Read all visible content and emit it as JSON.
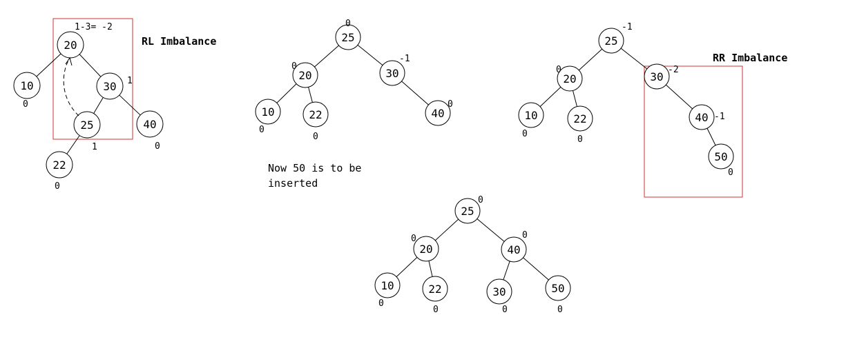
{
  "colors": {
    "box": "#d03030",
    "ink": "#000000"
  },
  "labels": {
    "rl_imbalance": "RL Imbalance",
    "rr_imbalance": "RR Imbalance",
    "rl_calc": "1-3= -2",
    "note_line1": "Now 50 is to be",
    "note_line2": "inserted"
  },
  "trees": [
    {
      "id": "t1",
      "nodes": [
        {
          "id": "n20",
          "label": "20",
          "bf": ""
        },
        {
          "id": "n10",
          "label": "10",
          "bf": "0"
        },
        {
          "id": "n30",
          "label": "30",
          "bf": "1"
        },
        {
          "id": "n25",
          "label": "25",
          "bf": "1"
        },
        {
          "id": "n40",
          "label": "40",
          "bf": "0"
        },
        {
          "id": "n22",
          "label": "22",
          "bf": "0"
        }
      ]
    },
    {
      "id": "t2",
      "nodes": [
        {
          "id": "n25",
          "label": "25",
          "bf": "0"
        },
        {
          "id": "n20",
          "label": "20",
          "bf": "0"
        },
        {
          "id": "n30",
          "label": "30",
          "bf": "-1"
        },
        {
          "id": "n10",
          "label": "10",
          "bf": "0"
        },
        {
          "id": "n22",
          "label": "22",
          "bf": "0"
        },
        {
          "id": "n40",
          "label": "40",
          "bf": "0"
        }
      ]
    },
    {
      "id": "t3",
      "nodes": [
        {
          "id": "n25",
          "label": "25",
          "bf": "-1"
        },
        {
          "id": "n20",
          "label": "20",
          "bf": "0"
        },
        {
          "id": "n30",
          "label": "30",
          "bf": "-2"
        },
        {
          "id": "n10",
          "label": "10",
          "bf": "0"
        },
        {
          "id": "n22",
          "label": "22",
          "bf": "0"
        },
        {
          "id": "n40",
          "label": "40",
          "bf": "-1"
        },
        {
          "id": "n50",
          "label": "50",
          "bf": "0"
        }
      ]
    },
    {
      "id": "t4",
      "nodes": [
        {
          "id": "n25",
          "label": "25",
          "bf": "0"
        },
        {
          "id": "n20",
          "label": "20",
          "bf": "0"
        },
        {
          "id": "n40",
          "label": "40",
          "bf": "0"
        },
        {
          "id": "n10",
          "label": "10",
          "bf": "0"
        },
        {
          "id": "n22",
          "label": "22",
          "bf": "0"
        },
        {
          "id": "n30",
          "label": "30",
          "bf": "0"
        },
        {
          "id": "n50",
          "label": "50",
          "bf": "0"
        }
      ]
    }
  ]
}
